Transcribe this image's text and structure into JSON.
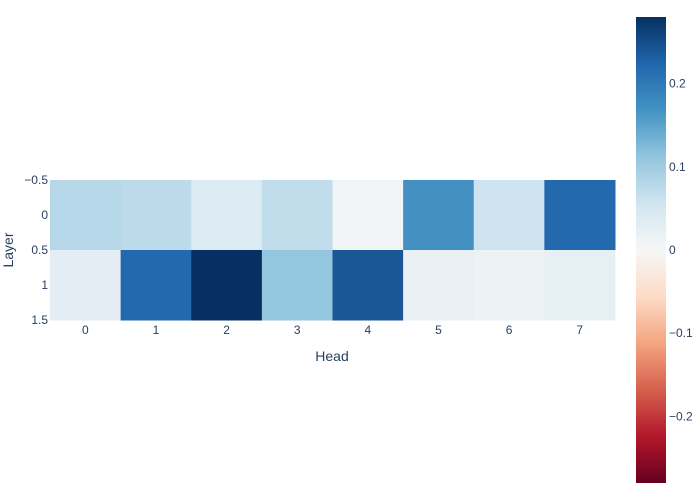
{
  "chart_data": {
    "type": "heatmap",
    "xlabel": "Head",
    "ylabel": "Layer",
    "x_categories": [
      "0",
      "1",
      "2",
      "3",
      "4",
      "5",
      "6",
      "7"
    ],
    "y_categories": [
      "0",
      "1"
    ],
    "y_tick_labels": [
      "−0.5",
      "0",
      "0.5",
      "1",
      "1.5"
    ],
    "z": [
      [
        0.08,
        0.075,
        0.04,
        0.07,
        0.01,
        0.17,
        0.06,
        0.22
      ],
      [
        0.03,
        0.22,
        0.28,
        0.11,
        0.24,
        0.02,
        0.015,
        0.025
      ]
    ],
    "zmin": -0.28,
    "zmax": 0.28,
    "colorscale": "RdBu",
    "colorbar_ticks": [
      {
        "value": 0.2,
        "label": "0.2"
      },
      {
        "value": 0.1,
        "label": "0.1"
      },
      {
        "value": 0,
        "label": "0"
      },
      {
        "value": -0.1,
        "label": "−0.1"
      },
      {
        "value": -0.2,
        "label": "−0.2"
      }
    ],
    "grid": false
  }
}
